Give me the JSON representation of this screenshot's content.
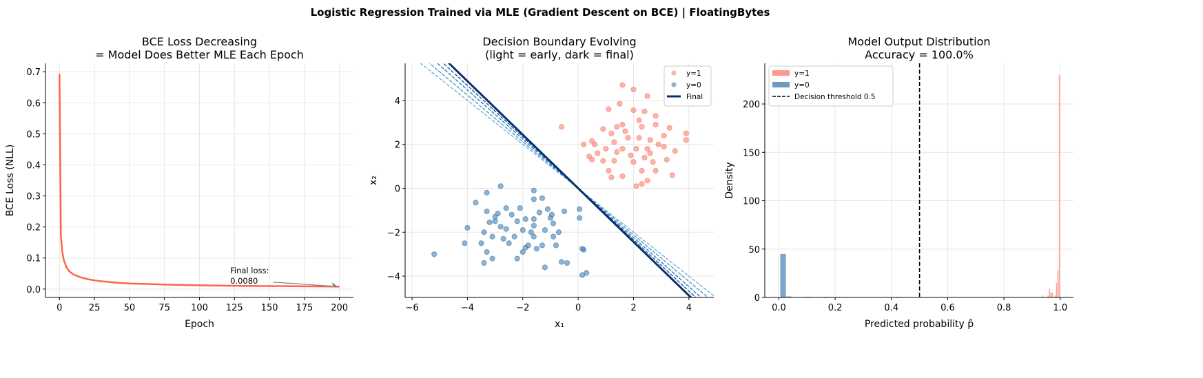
{
  "suptitle": "Logistic Regression Trained via MLE (Gradient Descent on BCE)  |  FloatingBytes",
  "chart_data": [
    {
      "type": "line",
      "title": [
        "BCE Loss Decreasing",
        "= Model Does Better MLE Each Epoch"
      ],
      "xlabel": "Epoch",
      "ylabel": "BCE Loss (NLL)",
      "xlim": [
        -10,
        210
      ],
      "ylim": [
        -0.027,
        0.727
      ],
      "xticks": [
        0,
        25,
        50,
        75,
        100,
        125,
        150,
        175,
        200
      ],
      "yticks": [
        0.0,
        0.1,
        0.2,
        0.3,
        0.4,
        0.5,
        0.6,
        0.7
      ],
      "grid": true,
      "color": "#ff6347",
      "series": [
        {
          "x": [
            0,
            1,
            2,
            3,
            5,
            7,
            10,
            15,
            20,
            25,
            30,
            40,
            50,
            75,
            100,
            125,
            150,
            175,
            200
          ],
          "y": [
            0.693,
            0.17,
            0.12,
            0.095,
            0.07,
            0.057,
            0.047,
            0.038,
            0.032,
            0.028,
            0.025,
            0.021,
            0.018,
            0.0145,
            0.0122,
            0.0105,
            0.0095,
            0.0087,
            0.008
          ]
        }
      ],
      "annotation": {
        "text": [
          "Final loss:",
          "0.0080"
        ],
        "x": 120,
        "y": 0.06,
        "arrow_to": [
          199,
          0.008
        ]
      }
    },
    {
      "type": "scatter",
      "title": [
        "Decision Boundary Evolving",
        "(light = early, dark = final)"
      ],
      "xlabel": "x₁",
      "ylabel": "x₂",
      "xlim": [
        -6.25,
        4.9
      ],
      "ylim": [
        -4.97,
        5.69
      ],
      "xticks": [
        -6,
        -4,
        -2,
        0,
        2,
        4
      ],
      "yticks": [
        -4,
        -2,
        0,
        2,
        4
      ],
      "grid": true,
      "legend": {
        "position": "top-right",
        "entries": [
          "y=1",
          "y=0",
          "Final"
        ]
      },
      "series": [
        {
          "name": "y=1",
          "color": "#fa8072",
          "points": [
            [
              1.6,
              4.7
            ],
            [
              2.0,
              4.5
            ],
            [
              2.5,
              4.2
            ],
            [
              2.0,
              3.55
            ],
            [
              2.4,
              3.5
            ],
            [
              2.8,
              3.3
            ],
            [
              1.1,
              3.6
            ],
            [
              1.5,
              3.85
            ],
            [
              2.2,
              3.1
            ],
            [
              1.6,
              2.9
            ],
            [
              2.8,
              2.9
            ],
            [
              3.3,
              2.75
            ],
            [
              -0.6,
              2.8
            ],
            [
              0.9,
              2.7
            ],
            [
              1.4,
              2.8
            ],
            [
              2.3,
              2.8
            ],
            [
              1.2,
              2.5
            ],
            [
              3.1,
              2.4
            ],
            [
              3.9,
              2.5
            ],
            [
              3.9,
              2.2
            ],
            [
              0.2,
              2.0
            ],
            [
              0.5,
              2.15
            ],
            [
              0.6,
              2.0
            ],
            [
              1.8,
              2.3
            ],
            [
              2.2,
              2.3
            ],
            [
              2.6,
              2.2
            ],
            [
              1.0,
              1.8
            ],
            [
              1.6,
              1.8
            ],
            [
              2.1,
              1.8
            ],
            [
              2.5,
              1.8
            ],
            [
              3.1,
              1.9
            ],
            [
              0.7,
              1.6
            ],
            [
              1.4,
              1.65
            ],
            [
              1.9,
              1.5
            ],
            [
              2.6,
              1.6
            ],
            [
              3.5,
              1.7
            ],
            [
              0.4,
              1.45
            ],
            [
              0.9,
              1.25
            ],
            [
              1.3,
              1.25
            ],
            [
              2.0,
              1.2
            ],
            [
              2.7,
              1.2
            ],
            [
              3.2,
              1.3
            ],
            [
              0.5,
              1.3
            ],
            [
              1.1,
              0.8
            ],
            [
              2.3,
              0.8
            ],
            [
              2.8,
              0.8
            ],
            [
              3.4,
              0.6
            ],
            [
              1.6,
              0.55
            ],
            [
              1.2,
              0.5
            ],
            [
              2.1,
              0.1
            ],
            [
              2.3,
              0.2
            ],
            [
              2.5,
              0.35
            ],
            [
              1.7,
              2.6
            ],
            [
              2.9,
              2.0
            ],
            [
              1.3,
              2.1
            ],
            [
              2.4,
              1.4
            ]
          ]
        },
        {
          "name": "y=0",
          "color": "#4682b4",
          "points": [
            [
              -2.8,
              0.1
            ],
            [
              -3.3,
              -0.2
            ],
            [
              -1.6,
              -0.1
            ],
            [
              -3.7,
              -0.65
            ],
            [
              -1.6,
              -0.5
            ],
            [
              -1.3,
              -0.45
            ],
            [
              -2.6,
              -0.9
            ],
            [
              -2.1,
              -0.9
            ],
            [
              -1.1,
              -0.95
            ],
            [
              -0.5,
              -1.05
            ],
            [
              -3.3,
              -1.05
            ],
            [
              -2.9,
              -1.15
            ],
            [
              -1.4,
              -1.1
            ],
            [
              -0.95,
              -1.2
            ],
            [
              -2.4,
              -1.2
            ],
            [
              -3.0,
              -1.3
            ],
            [
              -1.9,
              -1.4
            ],
            [
              -1.0,
              -1.35
            ],
            [
              -3.0,
              -1.5
            ],
            [
              -2.2,
              -1.5
            ],
            [
              -1.6,
              -1.4
            ],
            [
              -4.0,
              -1.8
            ],
            [
              -2.8,
              -1.75
            ],
            [
              -1.6,
              -1.7
            ],
            [
              -0.9,
              -1.6
            ],
            [
              -3.2,
              -1.55
            ],
            [
              -2.6,
              -1.85
            ],
            [
              -3.4,
              -2.0
            ],
            [
              -2.0,
              -1.9
            ],
            [
              -1.2,
              -1.9
            ],
            [
              -0.7,
              -2.0
            ],
            [
              -3.1,
              -2.2
            ],
            [
              -2.3,
              -2.2
            ],
            [
              -1.6,
              -2.2
            ],
            [
              -0.9,
              -2.2
            ],
            [
              -4.1,
              -2.5
            ],
            [
              -3.5,
              -2.5
            ],
            [
              -2.5,
              -2.5
            ],
            [
              -1.8,
              -2.6
            ],
            [
              -1.3,
              -2.6
            ],
            [
              -0.8,
              -2.6
            ],
            [
              -3.3,
              -2.9
            ],
            [
              -2.0,
              -2.9
            ],
            [
              -1.5,
              -2.75
            ],
            [
              0.2,
              -2.8
            ],
            [
              0.15,
              -2.75
            ],
            [
              -5.2,
              -3.0
            ],
            [
              -3.1,
              -3.2
            ],
            [
              -2.2,
              -3.2
            ],
            [
              -0.6,
              -3.35
            ],
            [
              -0.4,
              -3.4
            ],
            [
              -3.4,
              -3.4
            ],
            [
              -1.2,
              -3.6
            ],
            [
              0.3,
              -3.85
            ],
            [
              0.15,
              -3.95
            ],
            [
              -1.7,
              -2.0
            ],
            [
              0.05,
              -1.35
            ],
            [
              0.05,
              -0.95
            ],
            [
              -2.7,
              -2.3
            ],
            [
              -1.9,
              -2.7
            ]
          ]
        }
      ],
      "boundaries": [
        {
          "slope": -1.0,
          "intercept": 0.0,
          "color": "#6baed6",
          "style": "dashed"
        },
        {
          "slope": -1.06,
          "intercept": 0.0,
          "color": "#4292c6",
          "style": "dashed"
        },
        {
          "slope": -1.12,
          "intercept": 0.0,
          "color": "#2171b5",
          "style": "dashed"
        },
        {
          "slope": -1.17,
          "intercept": 0.0,
          "color": "#08519c",
          "style": "dashed"
        },
        {
          "name": "Final",
          "slope": -1.22,
          "intercept": 0.0,
          "color": "#08306b",
          "style": "solid"
        }
      ]
    },
    {
      "type": "bar",
      "title": [
        "Model Output Distribution",
        "Accuracy = 100.0%"
      ],
      "xlabel": "Predicted probability p̂",
      "ylabel": "Density",
      "xlim": [
        -0.05,
        1.047
      ],
      "ylim": [
        0,
        242
      ],
      "xticks": [
        0.0,
        0.2,
        0.4,
        0.6,
        0.8,
        1.0
      ],
      "yticks": [
        0,
        50,
        100,
        150,
        200
      ],
      "grid": true,
      "legend": {
        "position": "top-left",
        "entries": [
          "y=1",
          "y=0",
          "Decision threshold 0.5"
        ]
      },
      "threshold": 0.5,
      "series": [
        {
          "name": "y=1",
          "color": "#fa8072",
          "bin_width": 0.004,
          "bins": [
            [
              0.935,
              2
            ],
            [
              0.955,
              2
            ],
            [
              0.96,
              9
            ],
            [
              0.965,
              5
            ],
            [
              0.97,
              5
            ],
            [
              0.98,
              2
            ],
            [
              0.985,
              15
            ],
            [
              0.99,
              28
            ],
            [
              0.995,
              230
            ]
          ]
        },
        {
          "name": "y=0",
          "color": "#4682b4",
          "bin_width": 0.02,
          "bins": [
            [
              0.005,
              45
            ],
            [
              0.025,
              1
            ],
            [
              0.095,
              0.6
            ],
            [
              0.16,
              0.6
            ],
            [
              0.415,
              0.6
            ]
          ]
        }
      ]
    }
  ]
}
